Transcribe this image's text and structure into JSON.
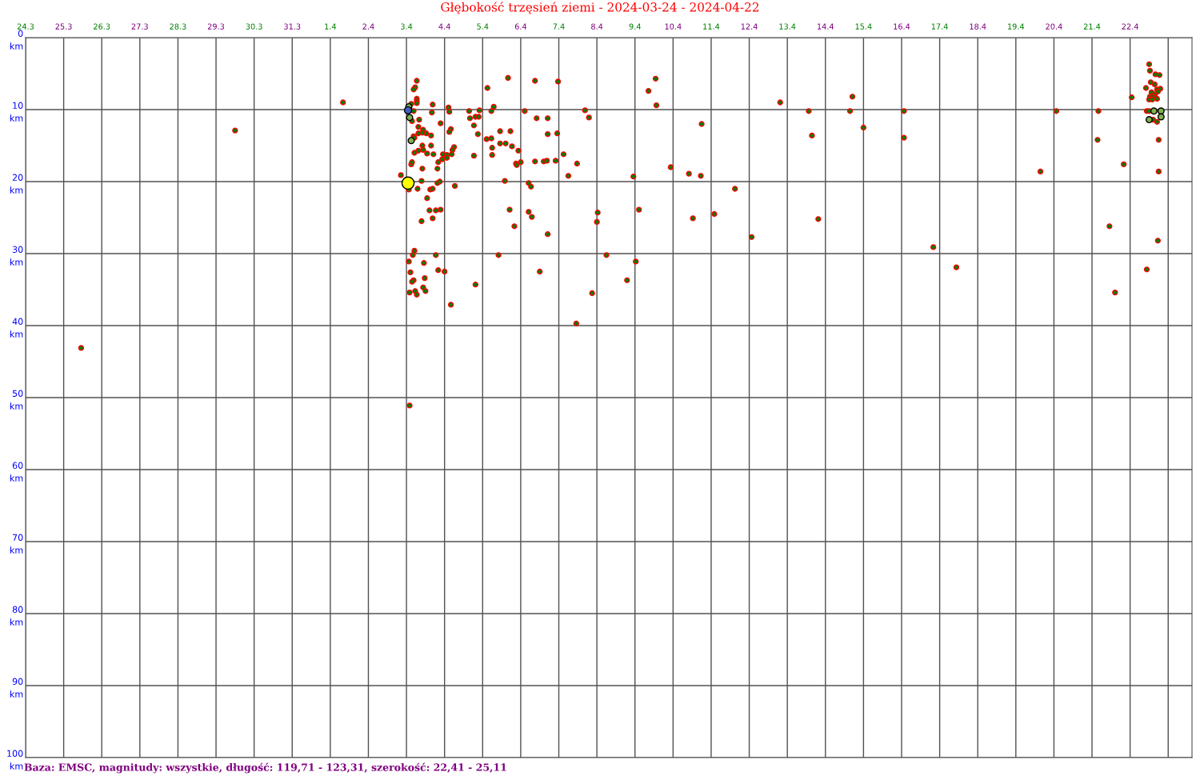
{
  "chart_data": {
    "type": "bubble",
    "title": "Głębokość trzęsień ziemi - 2024-03-24 - 2024-04-22",
    "annotations": [
      "Baza: EMSC, magnitudy: wszystkie, długość: 119,71 - 123,31, szerokość: 22,41 - 25,11"
    ],
    "xlim": [
      "2024-03-24T00:00",
      "2024-04-23T15:00"
    ],
    "xticks": [
      {
        "value": "2024-03-24",
        "label": "24.3"
      },
      {
        "value": "2024-03-25",
        "label": "25.3"
      },
      {
        "value": "2024-03-26",
        "label": "26.3"
      },
      {
        "value": "2024-03-27",
        "label": "27.3"
      },
      {
        "value": "2024-03-28",
        "label": "28.3"
      },
      {
        "value": "2024-03-29",
        "label": "29.3"
      },
      {
        "value": "2024-03-30",
        "label": "30.3"
      },
      {
        "value": "2024-03-31",
        "label": "31.3"
      },
      {
        "value": "2024-04-01",
        "label": "1.4"
      },
      {
        "value": "2024-04-02",
        "label": "2.4"
      },
      {
        "value": "2024-04-03",
        "label": "3.4"
      },
      {
        "value": "2024-04-04",
        "label": "4.4"
      },
      {
        "value": "2024-04-05",
        "label": "5.4"
      },
      {
        "value": "2024-04-06",
        "label": "6.4"
      },
      {
        "value": "2024-04-07",
        "label": "7.4"
      },
      {
        "value": "2024-04-08",
        "label": "8.4"
      },
      {
        "value": "2024-04-09",
        "label": "9.4"
      },
      {
        "value": "2024-04-10",
        "label": "10.4"
      },
      {
        "value": "2024-04-11",
        "label": "11.4"
      },
      {
        "value": "2024-04-12",
        "label": "12.4"
      },
      {
        "value": "2024-04-13",
        "label": "13.4"
      },
      {
        "value": "2024-04-14",
        "label": "14.4"
      },
      {
        "value": "2024-04-15",
        "label": "15.4"
      },
      {
        "value": "2024-04-16",
        "label": "16.4"
      },
      {
        "value": "2024-04-17",
        "label": "17.4"
      },
      {
        "value": "2024-04-18",
        "label": "18.4"
      },
      {
        "value": "2024-04-19",
        "label": "19.4"
      },
      {
        "value": "2024-04-20",
        "label": "20.4"
      },
      {
        "value": "2024-04-21",
        "label": "21.4"
      },
      {
        "value": "2024-04-22",
        "label": "22.4"
      },
      {
        "value": "2024-04-23",
        "label": null
      }
    ],
    "ylim": [
      100,
      0
    ],
    "yticks": [
      {
        "value": 0,
        "label": "0\nkm"
      },
      {
        "value": 10,
        "label": "10\nkm"
      },
      {
        "value": 20,
        "label": "20\nkm"
      },
      {
        "value": 30,
        "label": "30\nkm"
      },
      {
        "value": 40,
        "label": "40\nkm"
      },
      {
        "value": 50,
        "label": "50\nkm"
      },
      {
        "value": 60,
        "label": "60\nkm"
      },
      {
        "value": 70,
        "label": "70\nkm"
      },
      {
        "value": 80,
        "label": "80\nkm"
      },
      {
        "value": 90,
        "label": "90\nkm"
      },
      {
        "value": 100,
        "label": "100\nkm"
      }
    ],
    "grid": true,
    "marker": "circle",
    "series": [
      {
        "color": "#008000",
        "x": [
          "2024-03-25T11:00",
          "2024-03-29T12:00",
          "2024-04-01T08:00",
          "2024-04-03T06:30",
          "2024-04-03T05:30",
          "2024-04-03T04:30",
          "2024-04-03T06:30",
          "2024-04-03T06:30",
          "2024-04-03T06:30",
          "2024-04-03T03:00",
          "2024-04-03T16:30",
          "2024-04-03T04:30",
          "2024-04-03T16:00",
          "2024-04-04T02:30",
          "2024-04-04T03:00",
          "2024-04-03T03:30",
          "2024-04-03T08:00",
          "2024-04-03T21:30",
          "2024-04-03T07:30",
          "2024-04-03T10:30",
          "2024-04-03T12:30",
          "2024-04-03T07:30",
          "2024-04-03T10:00",
          "2024-04-04T04:00",
          "2024-04-04T03:00",
          "2024-04-03T04:30",
          "2024-04-03T05:00",
          "2024-04-03T15:30",
          "2024-04-03T10:00",
          "2024-04-03T15:30",
          "2024-04-04T06:00",
          "2024-04-04T05:00",
          "2024-04-04T04:30",
          "2024-04-03T07:30",
          "2024-04-03T05:00",
          "2024-04-03T10:30",
          "2024-04-03T13:00",
          "2024-04-03T17:00",
          "2024-04-03T23:00",
          "2024-04-04T01:30",
          "2024-04-04T01:30",
          "2024-04-03T22:30",
          "2024-04-03T20:00",
          "2024-04-03T03:00",
          "2024-04-03T03:30",
          "2024-04-03T10:00",
          "2024-04-03T19:30",
          "2024-04-02T20:30",
          "2024-04-03T01:30",
          "2024-04-03T09:30",
          "2024-04-03T19:30",
          "2024-04-03T21:00",
          "2024-04-03T07:00",
          "2024-04-03T15:00",
          "2024-04-03T16:30",
          "2024-04-04T06:30",
          "2024-04-03T13:00",
          "2024-04-03T14:30",
          "2024-04-03T18:30",
          "2024-04-03T21:30",
          "2024-04-03T16:30",
          "2024-04-03T09:30",
          "2024-04-03T05:00",
          "2024-04-03T04:00",
          "2024-04-03T18:30",
          "2024-04-03T01:30",
          "2024-04-03T11:00",
          "2024-04-03T02:30",
          "2024-04-03T20:00",
          "2024-04-04T00:00",
          "2024-04-03T04:30",
          "2024-04-03T03:30",
          "2024-04-03T11:30",
          "2024-04-03T02:00",
          "2024-04-03T05:30",
          "2024-04-03T06:30",
          "2024-04-03T10:30",
          "2024-04-03T12:00",
          "2024-04-04T04:00",
          "2024-04-03T02:00",
          "2024-04-05T16:00",
          "2024-04-06T09:00",
          "2024-04-06T23:30",
          "2024-04-05T03:00",
          "2024-04-09T13:00",
          "2024-04-09T08:30",
          "2024-04-09T13:30",
          "2024-04-05T07:00",
          "2024-04-04T15:30",
          "2024-04-04T22:00",
          "2024-04-05T05:30",
          "2024-04-06T02:30",
          "2024-04-07T16:30",
          "2024-04-04T16:00",
          "2024-04-04T19:30",
          "2024-04-04T21:30",
          "2024-04-06T10:00",
          "2024-04-06T17:00",
          "2024-04-07T19:00",
          "2024-04-04T18:30",
          "2024-04-05T11:00",
          "2024-04-05T17:30",
          "2024-04-04T21:00",
          "2024-04-06T17:00",
          "2024-04-06T23:00",
          "2024-04-05T02:30",
          "2024-04-05T05:30",
          "2024-04-05T06:00",
          "2024-04-05T11:00",
          "2024-04-05T14:30",
          "2024-04-05T18:30",
          "2024-04-05T22:30",
          "2024-04-04T18:30",
          "2024-04-05T06:00",
          "2024-04-07T03:00",
          "2024-04-05T21:00",
          "2024-04-05T21:30",
          "2024-04-06T00:00",
          "2024-04-06T09:00",
          "2024-04-06T14:30",
          "2024-04-06T16:30",
          "2024-04-06T22:00",
          "2024-04-07T11:30",
          "2024-04-09T22:30",
          "2024-04-07T06:00",
          "2024-04-08T23:00",
          "2024-04-05T14:00",
          "2024-04-06T05:00",
          "2024-04-06T06:30",
          "2024-04-05T17:00",
          "2024-04-06T05:00",
          "2024-04-06T07:00",
          "2024-04-08T00:30",
          "2024-04-08T00:00",
          "2024-04-09T02:30",
          "2024-04-05T20:00",
          "2024-04-06T17:00",
          "2024-04-05T10:00",
          "2024-04-08T06:00",
          "2024-04-09T00:30",
          "2024-04-06T12:00",
          "2024-04-04T19:30",
          "2024-04-08T19:00",
          "2024-04-07T21:00",
          "2024-04-07T11:00",
          "2024-04-12T19:30",
          "2024-04-13T13:30",
          "2024-04-14T15:30",
          "2024-04-14T17:00",
          "2024-04-16T01:30",
          "2024-04-10T18:00",
          "2024-04-13T15:30",
          "2024-04-15T00:00",
          "2024-04-16T01:30",
          "2024-04-10T10:00",
          "2024-04-10T17:30",
          "2024-04-11T15:00",
          "2024-04-10T12:30",
          "2024-04-11T02:00",
          "2024-04-13T19:30",
          "2024-04-12T01:30",
          "2024-04-16T20:00",
          "2024-04-17T10:30",
          "2024-04-19T15:30",
          "2024-04-20T01:30",
          "2024-04-21T04:00",
          "2024-04-21T03:30",
          "2024-04-21T20:00",
          "2024-04-21T11:00",
          "2024-04-21T14:30",
          "2024-04-22T01:00",
          "2024-04-22T10:30",
          "2024-04-22T17:30",
          "2024-04-22T18:00",
          "2024-04-22T18:00",
          "2024-04-22T12:00",
          "2024-04-22T12:30",
          "2024-04-22T16:00",
          "2024-04-22T18:30",
          "2024-04-22T13:00",
          "2024-04-22T15:30",
          "2024-04-22T10:00",
          "2024-04-22T19:00",
          "2024-04-22T17:00",
          "2024-04-22T17:30",
          "2024-04-22T13:30",
          "2024-04-22T15:30",
          "2024-04-22T12:30",
          "2024-04-22T14:30",
          "2024-04-22T16:00",
          "2024-04-22T12:00",
          "2024-04-22T14:00",
          "2024-04-22T17:00",
          "2024-04-22T10:30",
          "2024-04-22T12:00",
          "2024-04-22T14:30",
          "2024-04-22T17:00"
        ],
        "values": [
          43.1,
          12.9,
          9.0,
          6.0,
          6.9,
          7.2,
          8.5,
          8.8,
          9.1,
          9.2,
          9.3,
          10.2,
          10.4,
          9.7,
          10.3,
          11.6,
          11.4,
          11.9,
          12.4,
          12.8,
          13.3,
          13.3,
          13.2,
          12.7,
          13.1,
          13.7,
          13.9,
          13.6,
          15.0,
          15.0,
          15.2,
          15.6,
          16.2,
          15.7,
          16.0,
          15.6,
          16.1,
          16.2,
          16.2,
          16.3,
          16.7,
          16.9,
          17.3,
          17.6,
          17.3,
          18.2,
          18.2,
          19.1,
          21.1,
          19.9,
          20.2,
          20.0,
          21.0,
          21.1,
          21.0,
          20.6,
          22.3,
          24.0,
          24.0,
          23.9,
          25.1,
          25.5,
          29.6,
          30.2,
          30.2,
          31.1,
          31.3,
          32.6,
          32.3,
          32.5,
          33.7,
          33.9,
          33.4,
          35.4,
          35.2,
          35.7,
          34.7,
          35.2,
          37.1,
          51.1,
          5.6,
          6.0,
          6.1,
          7.0,
          5.7,
          7.4,
          9.4,
          9.6,
          10.2,
          10.1,
          10.2,
          10.2,
          10.1,
          11.2,
          11.0,
          11.0,
          11.2,
          11.2,
          11.1,
          12.2,
          13.0,
          13.0,
          13.4,
          13.4,
          13.3,
          14.1,
          14.0,
          15.3,
          14.7,
          14.7,
          15.1,
          15.7,
          16.4,
          16.3,
          16.2,
          17.5,
          17.7,
          17.3,
          17.2,
          17.2,
          17.1,
          17.1,
          17.5,
          18.0,
          19.2,
          19.3,
          19.9,
          20.2,
          20.7,
          23.9,
          24.2,
          24.9,
          24.3,
          25.6,
          23.9,
          26.2,
          27.3,
          30.2,
          30.2,
          31.1,
          32.5,
          34.3,
          33.7,
          35.5,
          39.7,
          9.0,
          10.2,
          10.2,
          8.2,
          10.2,
          12.0,
          13.6,
          12.5,
          13.9,
          18.9,
          19.2,
          21.0,
          25.1,
          24.5,
          25.2,
          27.7,
          29.1,
          31.9,
          18.6,
          10.2,
          10.2,
          14.2,
          17.6,
          26.2,
          35.4,
          8.3,
          32.2,
          28.2,
          18.6,
          14.2,
          3.7,
          4.6,
          5.1,
          5.2,
          6.2,
          6.5,
          7.0,
          7.1,
          7.2,
          7.5,
          7.6,
          7.9,
          8.2,
          8.2,
          8.3,
          8.6,
          8.6,
          8.5,
          10.2,
          10.2,
          11.4,
          11.7
        ],
        "sizes": [
          0.15,
          0.15,
          0.15,
          0.15,
          0.15,
          0.15,
          0.15,
          0.15,
          0.15,
          0.15,
          0.15,
          0.15,
          0.15,
          0.15,
          0.15,
          0.15,
          0.15,
          0.15,
          0.15,
          0.15,
          0.15,
          0.15,
          0.15,
          0.15,
          0.15,
          0.15,
          0.15,
          0.15,
          0.15,
          0.15,
          0.15,
          0.15,
          0.15,
          0.15,
          0.15,
          0.15,
          0.15,
          0.15,
          0.15,
          0.15,
          0.15,
          0.15,
          0.15,
          0.15,
          0.15,
          0.15,
          0.15,
          0.15,
          0.15,
          0.15,
          0.15,
          0.15,
          0.15,
          0.15,
          0.15,
          0.15,
          0.15,
          0.15,
          0.15,
          0.15,
          0.15,
          0.15,
          0.15,
          0.15,
          0.15,
          0.15,
          0.15,
          0.15,
          0.15,
          0.15,
          0.15,
          0.15,
          0.15,
          0.15,
          0.15,
          0.15,
          0.15,
          0.15,
          0.15,
          0.15,
          0.15,
          0.15,
          0.15,
          0.15,
          0.15,
          0.15,
          0.15,
          0.15,
          0.15,
          0.15,
          0.15,
          0.15,
          0.15,
          0.15,
          0.15,
          0.15,
          0.15,
          0.15,
          0.15,
          0.15,
          0.15,
          0.15,
          0.15,
          0.15,
          0.15,
          0.15,
          0.15,
          0.15,
          0.15,
          0.15,
          0.15,
          0.15,
          0.15,
          0.15,
          0.15,
          0.15,
          0.15,
          0.15,
          0.15,
          0.15,
          0.15,
          0.15,
          0.15,
          0.15,
          0.15,
          0.15,
          0.15,
          0.15,
          0.15,
          0.15,
          0.15,
          0.15,
          0.15,
          0.15,
          0.15,
          0.15,
          0.15,
          0.15,
          0.15,
          0.15,
          0.15,
          0.15,
          0.15,
          0.15,
          0.15,
          0.15,
          0.15,
          0.15,
          0.15,
          0.15,
          0.15,
          0.15,
          0.15,
          0.15,
          0.15,
          0.15,
          0.15,
          0.15,
          0.15,
          0.15,
          0.15,
          0.15,
          0.15,
          0.15,
          0.15,
          0.15,
          0.15,
          0.15,
          0.15,
          0.15,
          0.15,
          0.15,
          0.15,
          0.15,
          0.15,
          0.15,
          0.15,
          0.15,
          0.15,
          0.15,
          0.15,
          0.15,
          0.15,
          0.15,
          0.15,
          0.15,
          0.15,
          0.15,
          0.15,
          0.15,
          0.15,
          0.15,
          0.15,
          0.15,
          0.15,
          0.15,
          0.15
        ]
      },
      {
        "color": "#80b050",
        "x": [
          "2024-04-03T01:30",
          "2024-04-03T02:00",
          "2024-04-03T03:00",
          "2024-04-22T15:00",
          "2024-04-22T19:30",
          "2024-04-22T19:30",
          "2024-04-22T12:00"
        ],
        "values": [
          9.6,
          11.1,
          14.3,
          10.2,
          10.2,
          11.0,
          11.4
        ],
        "sizes": [
          0.25,
          0.25,
          0.25,
          0.25,
          0.25,
          0.25,
          0.25
        ]
      },
      {
        "color": "#4060c0",
        "x": [
          "2024-04-03T01:00"
        ],
        "values": [
          10.1
        ],
        "sizes": [
          0.35
        ]
      },
      {
        "color": "#ffff00",
        "x": [
          "2024-04-03T01:00"
        ],
        "values": [
          20.2
        ],
        "sizes": [
          1
        ]
      }
    ]
  }
}
